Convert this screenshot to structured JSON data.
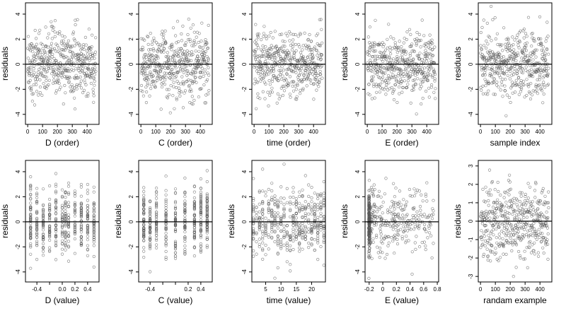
{
  "chart_data": [
    {
      "type": "scatter",
      "xlabel": "D (order)",
      "ylabel": "residuals",
      "xlim": [
        -15,
        480
      ],
      "ylim": [
        -4.8,
        4.9
      ],
      "xticks": [
        0,
        100,
        200,
        300,
        400
      ],
      "yticks": [
        -4,
        -2,
        0,
        2,
        4
      ],
      "x_kind": "order",
      "n": 459,
      "hline": 0,
      "points": []
    },
    {
      "type": "scatter",
      "xlabel": "C (order)",
      "ylabel": "residuals",
      "xlim": [
        -15,
        480
      ],
      "ylim": [
        -4.8,
        4.9
      ],
      "xticks": [
        0,
        100,
        200,
        300,
        400
      ],
      "yticks": [
        -4,
        -2,
        0,
        2,
        4
      ],
      "x_kind": "order",
      "n": 459,
      "hline": 0,
      "points": []
    },
    {
      "type": "scatter",
      "xlabel": "time (order)",
      "ylabel": "residuals",
      "xlim": [
        -15,
        480
      ],
      "ylim": [
        -4.8,
        4.9
      ],
      "xticks": [
        0,
        100,
        200,
        300,
        400
      ],
      "yticks": [
        -4,
        -2,
        0,
        2,
        4
      ],
      "x_kind": "order",
      "n": 459,
      "hline": 0,
      "points": []
    },
    {
      "type": "scatter",
      "xlabel": "E (order)",
      "ylabel": "residuals",
      "xlim": [
        -15,
        480
      ],
      "ylim": [
        -4.8,
        4.9
      ],
      "xticks": [
        0,
        100,
        200,
        300,
        400
      ],
      "yticks": [
        -4,
        -2,
        0,
        2,
        4
      ],
      "x_kind": "order",
      "n": 459,
      "hline": 0,
      "points": []
    },
    {
      "type": "scatter",
      "xlabel": "sample index",
      "ylabel": "residuals",
      "xlim": [
        -15,
        480
      ],
      "ylim": [
        -4.8,
        4.9
      ],
      "xticks": [
        0,
        100,
        200,
        300,
        400
      ],
      "yticks": [
        -4,
        -2,
        0,
        2,
        4
      ],
      "x_kind": "order",
      "n": 459,
      "hline": 0,
      "points": []
    },
    {
      "type": "scatter",
      "xlabel": "D (value)",
      "ylabel": "residuals",
      "xlim": [
        -0.58,
        0.58
      ],
      "ylim": [
        -4.8,
        4.9
      ],
      "xticks": [
        -0.4,
        -0.2,
        0.0,
        0.2,
        0.4
      ],
      "xtick_labels": [
        "-0.4",
        "",
        "0.0",
        "0.2",
        "0.4"
      ],
      "yticks": [
        -4,
        -2,
        0,
        2,
        4
      ],
      "x_kind": "discrete",
      "x_levels": [
        -0.5,
        -0.4,
        -0.3,
        -0.2,
        -0.1,
        0.0,
        0.05,
        0.1,
        0.2,
        0.3,
        0.4,
        0.5
      ],
      "n": 459,
      "hline": 0,
      "points": []
    },
    {
      "type": "scatter",
      "xlabel": "C (value)",
      "ylabel": "residuals",
      "xlim": [
        -0.58,
        0.58
      ],
      "ylim": [
        -4.8,
        4.9
      ],
      "xticks": [
        -0.4,
        -0.2,
        0.0,
        0.2,
        0.4
      ],
      "xtick_labels": [
        "-0.4",
        "",
        "",
        "0.2",
        "0.4"
      ],
      "yticks": [
        -4,
        -2,
        0,
        2,
        4
      ],
      "x_kind": "discrete",
      "x_levels": [
        -0.5,
        -0.4,
        -0.3,
        -0.15,
        0.0,
        0.15,
        0.3,
        0.4,
        0.5
      ],
      "n": 459,
      "hline": 0,
      "points": []
    },
    {
      "type": "scatter",
      "xlabel": "time (value)",
      "ylabel": "residuals",
      "xlim": [
        0.5,
        24.5
      ],
      "ylim": [
        -4.8,
        4.9
      ],
      "xticks": [
        5,
        10,
        15,
        20
      ],
      "yticks": [
        -4,
        -2,
        0,
        2,
        4
      ],
      "x_kind": "discrete",
      "x_levels": [
        1,
        2,
        3,
        4,
        5,
        6,
        7,
        8,
        9,
        10,
        11,
        12,
        13,
        14,
        15,
        16,
        17,
        18,
        19,
        20,
        21,
        22,
        23,
        24
      ],
      "n": 459,
      "hline": 0,
      "points": []
    },
    {
      "type": "scatter",
      "xlabel": "E (value)",
      "ylabel": "residuals",
      "xlim": [
        -0.26,
        0.82
      ],
      "ylim": [
        -4.8,
        4.9
      ],
      "xticks": [
        -0.2,
        0.0,
        0.2,
        0.4,
        0.6,
        0.8
      ],
      "yticks": [
        -4,
        -2,
        0,
        2,
        4
      ],
      "x_kind": "skewed",
      "n": 459,
      "hline": 0,
      "points": []
    },
    {
      "type": "scatter",
      "xlabel": "randam example",
      "ylabel": "residuals",
      "xlim": [
        -15,
        480
      ],
      "ylim": [
        -3.3,
        3.3
      ],
      "xticks": [
        0,
        100,
        200,
        300,
        400
      ],
      "yticks": [
        -3,
        -2,
        -1,
        0,
        1,
        2,
        3
      ],
      "x_kind": "order",
      "n": 459,
      "hline": 0,
      "points": []
    }
  ]
}
